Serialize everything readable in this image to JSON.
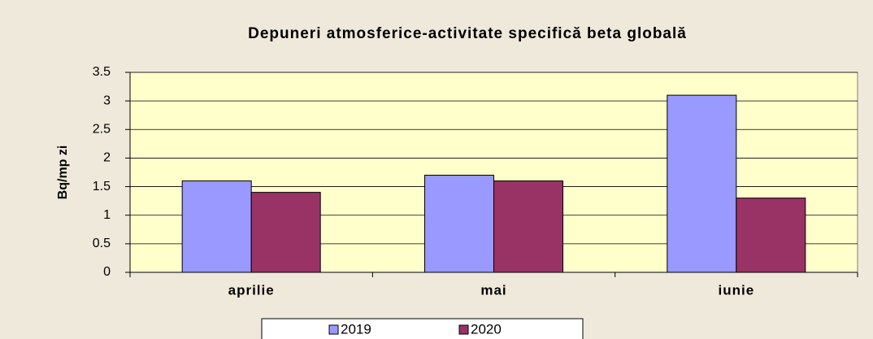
{
  "chart_data": {
    "type": "bar",
    "title": "Depuneri atmosferice-activitate specifică beta globală",
    "y_label": "Bq/mp zi",
    "categories": [
      "aprilie",
      "mai",
      "iunie"
    ],
    "series": [
      {
        "name": "2019",
        "color": "#9999ff",
        "values": [
          1.6,
          1.7,
          3.1
        ]
      },
      {
        "name": "2020",
        "color": "#993366",
        "values": [
          1.4,
          1.6,
          1.3
        ]
      }
    ],
    "ylim": [
      0,
      3.5
    ],
    "yticks": [
      0,
      0.5,
      1,
      1.5,
      2,
      2.5,
      3,
      3.5
    ],
    "grid": true,
    "legend": "bottom"
  }
}
